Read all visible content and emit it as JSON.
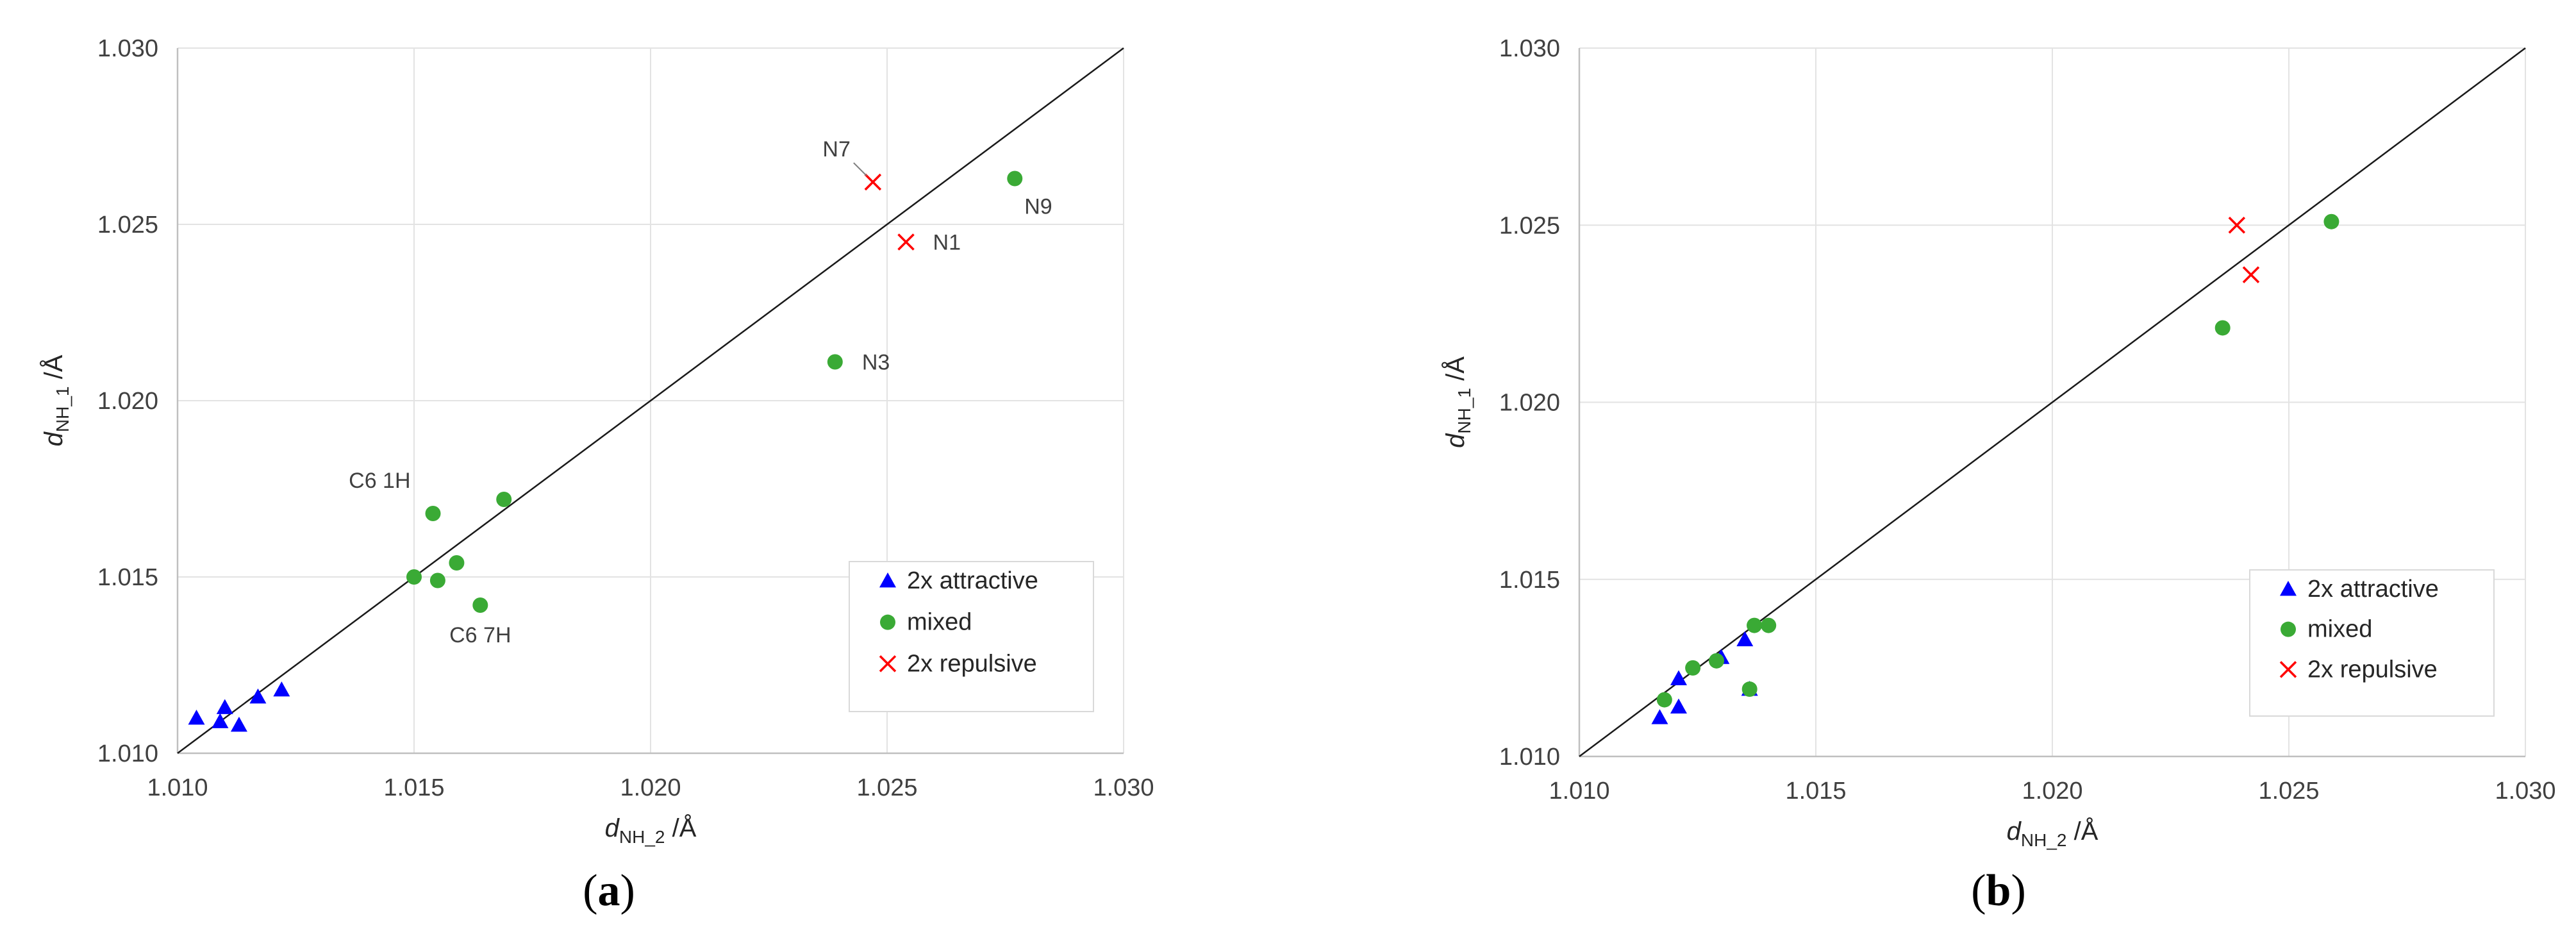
{
  "chart_data": [
    {
      "type": "scatter",
      "panel_label": "a",
      "xlabel": {
        "var": "d",
        "sub": "NH_2",
        "unit": " /Å"
      },
      "ylabel": {
        "var": "d",
        "sub": "NH_1",
        "unit": " /Å"
      },
      "xlim": [
        1.01,
        1.03
      ],
      "ylim": [
        1.01,
        1.03
      ],
      "xticks": [
        "1.010",
        "1.015",
        "1.020",
        "1.025",
        "1.030"
      ],
      "yticks": [
        "1.010",
        "1.015",
        "1.020",
        "1.025",
        "1.030"
      ],
      "grid": true,
      "diagonal_line": true,
      "legend_position": "bottom-right",
      "series": [
        {
          "name": "2x attractive",
          "marker": "triangle",
          "color": "#0000ff",
          "points": [
            [
              1.0104,
              1.011
            ],
            [
              1.0109,
              1.0109
            ],
            [
              1.011,
              1.0113
            ],
            [
              1.0113,
              1.0108
            ],
            [
              1.0117,
              1.0116
            ],
            [
              1.0122,
              1.0118
            ]
          ]
        },
        {
          "name": "mixed",
          "marker": "circle",
          "color": "#3aaa35",
          "points": [
            [
              1.015,
              1.015
            ],
            [
              1.0154,
              1.0168
            ],
            [
              1.0155,
              1.0149
            ],
            [
              1.0159,
              1.0154
            ],
            [
              1.0164,
              1.0142
            ],
            [
              1.0169,
              1.0172
            ],
            [
              1.0239,
              1.0211
            ],
            [
              1.0277,
              1.0263
            ]
          ]
        },
        {
          "name": "2x repulsive",
          "marker": "x",
          "color": "#ff0000",
          "points": [
            [
              1.0247,
              1.0262
            ],
            [
              1.0254,
              1.0245
            ]
          ]
        }
      ],
      "annotations": [
        {
          "text": "N7",
          "x": 1.0247,
          "y": 1.0262,
          "placement": "above-left",
          "leader": true
        },
        {
          "text": "N1",
          "x": 1.0254,
          "y": 1.0245,
          "placement": "right"
        },
        {
          "text": "N9",
          "x": 1.0277,
          "y": 1.0263,
          "placement": "below-right"
        },
        {
          "text": "N3",
          "x": 1.0239,
          "y": 1.0211,
          "placement": "right"
        },
        {
          "text": "C6 1H",
          "x": 1.0154,
          "y": 1.0168,
          "placement": "above-left"
        },
        {
          "text": "C6 7H",
          "x": 1.0164,
          "y": 1.0142,
          "placement": "below"
        }
      ]
    },
    {
      "type": "scatter",
      "panel_label": "b",
      "xlabel": {
        "var": "d",
        "sub": "NH_2",
        "unit": " /Å"
      },
      "ylabel": {
        "var": "d",
        "sub": "NH_1",
        "unit": " /Å"
      },
      "xlim": [
        1.01,
        1.03
      ],
      "ylim": [
        1.01,
        1.03
      ],
      "xticks": [
        "1.010",
        "1.015",
        "1.020",
        "1.025",
        "1.030"
      ],
      "yticks": [
        "1.010",
        "1.015",
        "1.020",
        "1.025",
        "1.030"
      ],
      "grid": true,
      "diagonal_line": true,
      "legend_position": "bottom-right",
      "series": [
        {
          "name": "2x attractive",
          "marker": "triangle",
          "color": "#0000ff",
          "points": [
            [
              1.0117,
              1.0111
            ],
            [
              1.0121,
              1.0122
            ],
            [
              1.0121,
              1.0114
            ],
            [
              1.013,
              1.0128
            ],
            [
              1.0135,
              1.0133
            ],
            [
              1.0136,
              1.0119
            ]
          ]
        },
        {
          "name": "mixed",
          "marker": "circle",
          "color": "#3aaa35",
          "points": [
            [
              1.0118,
              1.0116
            ],
            [
              1.0124,
              1.0125
            ],
            [
              1.0129,
              1.0127
            ],
            [
              1.0137,
              1.0137
            ],
            [
              1.014,
              1.0137
            ],
            [
              1.0136,
              1.0119
            ],
            [
              1.0236,
              1.0221
            ],
            [
              1.0259,
              1.0251
            ]
          ]
        },
        {
          "name": "2x repulsive",
          "marker": "x",
          "color": "#ff0000",
          "points": [
            [
              1.0239,
              1.025
            ],
            [
              1.0242,
              1.0236
            ]
          ]
        }
      ],
      "annotations": []
    }
  ]
}
